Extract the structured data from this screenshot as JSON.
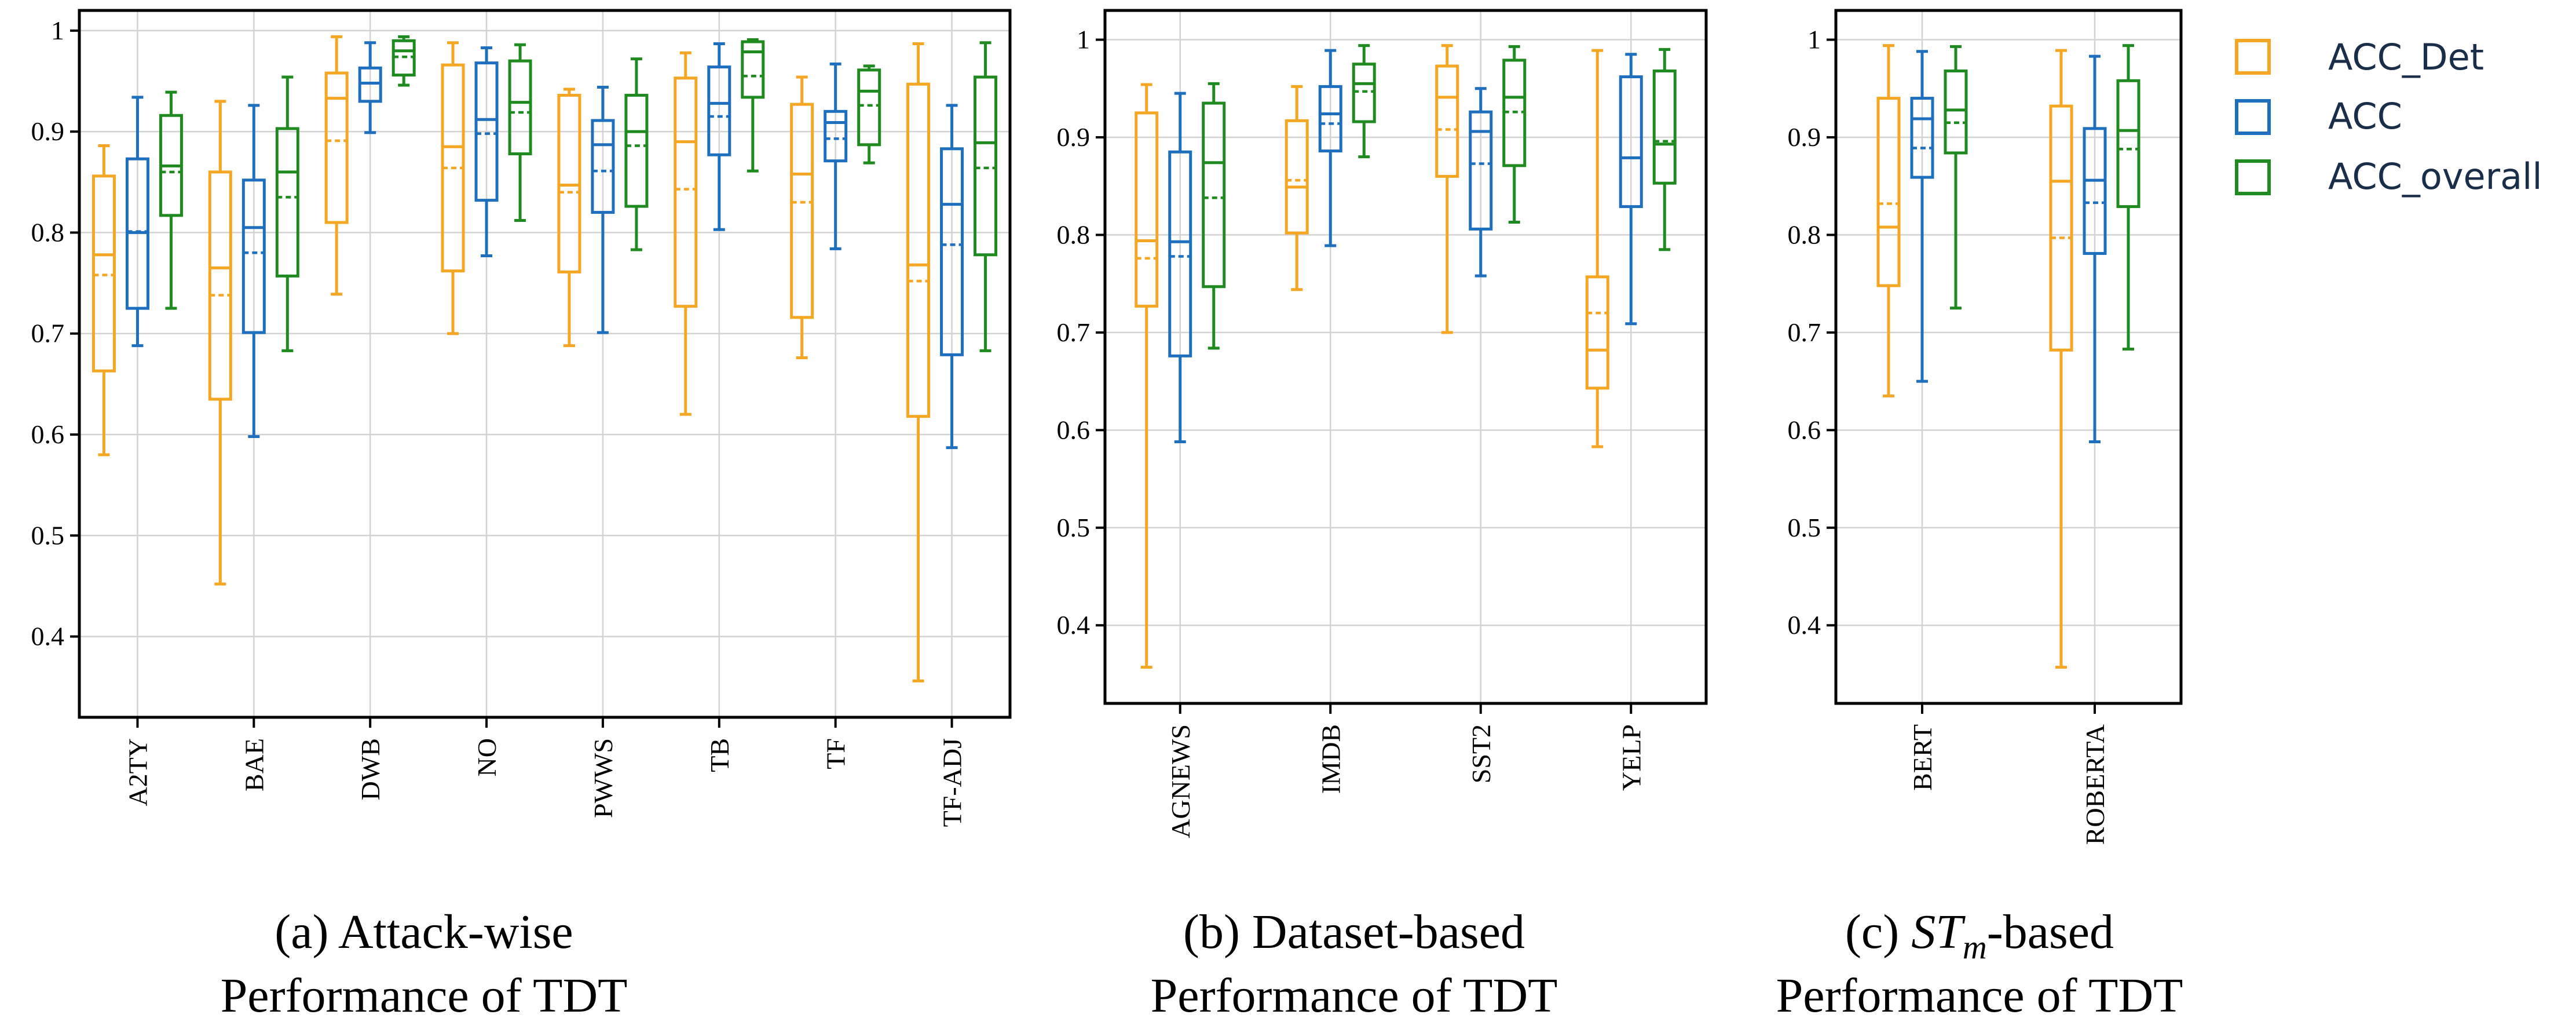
{
  "colors": {
    "ACC_Det": "#f5a623",
    "ACC": "#1f6fbf",
    "ACC_overall": "#1f8a1f",
    "grid": "#d3d3d3",
    "axis": "#000000"
  },
  "legend": {
    "items": [
      {
        "name": "ACC_Det",
        "label": "ACC_Det"
      },
      {
        "name": "ACC",
        "label": "ACC"
      },
      {
        "name": "ACC_overall",
        "label": "ACC_overall"
      }
    ]
  },
  "chart_data": [
    {
      "type": "box",
      "title": "Attack-wise Performance of TDT",
      "caption": {
        "line1": "(a) Attack-wise",
        "line2": "Performance of TDT"
      },
      "ylim": [
        0.32,
        1.02
      ],
      "yticks": [
        0.4,
        0.5,
        0.6,
        0.7,
        0.8,
        0.9,
        1
      ],
      "ytick_labels": [
        "0.4",
        "0.5",
        "0.6",
        "0.7",
        "0.8",
        "0.9",
        "1"
      ],
      "categories": [
        "A2TY",
        "BAE",
        "DWB",
        "NO",
        "PWWS",
        "TB",
        "TF",
        "TF-ADJ"
      ],
      "series": [
        {
          "name": "ACC_Det",
          "boxes": [
            {
              "whislo": 0.58,
              "q1": 0.663,
              "med": 0.778,
              "mean": 0.758,
              "q3": 0.856,
              "whishi": 0.886
            },
            {
              "whislo": 0.452,
              "q1": 0.635,
              "med": 0.765,
              "mean": 0.738,
              "q3": 0.86,
              "whishi": 0.93
            },
            {
              "whislo": 0.739,
              "q1": 0.81,
              "med": 0.933,
              "mean": 0.891,
              "q3": 0.958,
              "whishi": 0.994
            },
            {
              "whislo": 0.7,
              "q1": 0.762,
              "med": 0.885,
              "mean": 0.864,
              "q3": 0.966,
              "whishi": 0.988
            },
            {
              "whislo": 0.688,
              "q1": 0.761,
              "med": 0.847,
              "mean": 0.84,
              "q3": 0.936,
              "whishi": 0.942
            },
            {
              "whislo": 0.62,
              "q1": 0.727,
              "med": 0.89,
              "mean": 0.843,
              "q3": 0.953,
              "whishi": 0.978
            },
            {
              "whislo": 0.676,
              "q1": 0.716,
              "med": 0.858,
              "mean": 0.83,
              "q3": 0.927,
              "whishi": 0.954
            },
            {
              "whislo": 0.356,
              "q1": 0.618,
              "med": 0.768,
              "mean": 0.752,
              "q3": 0.947,
              "whishi": 0.987
            }
          ]
        },
        {
          "name": "ACC",
          "boxes": [
            {
              "whislo": 0.688,
              "q1": 0.725,
              "med": 0.8,
              "mean": 0.801,
              "q3": 0.873,
              "whishi": 0.934
            },
            {
              "whislo": 0.598,
              "q1": 0.701,
              "med": 0.805,
              "mean": 0.78,
              "q3": 0.852,
              "whishi": 0.926
            },
            {
              "whislo": 0.899,
              "q1": 0.93,
              "med": 0.948,
              "mean": 0.948,
              "q3": 0.963,
              "whishi": 0.988
            },
            {
              "whislo": 0.777,
              "q1": 0.832,
              "med": 0.912,
              "mean": 0.898,
              "q3": 0.968,
              "whishi": 0.983
            },
            {
              "whislo": 0.701,
              "q1": 0.82,
              "med": 0.887,
              "mean": 0.861,
              "q3": 0.911,
              "whishi": 0.944
            },
            {
              "whislo": 0.803,
              "q1": 0.877,
              "med": 0.928,
              "mean": 0.915,
              "q3": 0.964,
              "whishi": 0.987
            },
            {
              "whislo": 0.784,
              "q1": 0.871,
              "med": 0.909,
              "mean": 0.893,
              "q3": 0.92,
              "whishi": 0.967
            },
            {
              "whislo": 0.587,
              "q1": 0.679,
              "med": 0.828,
              "mean": 0.788,
              "q3": 0.883,
              "whishi": 0.926
            }
          ]
        },
        {
          "name": "ACC_overall",
          "boxes": [
            {
              "whislo": 0.725,
              "q1": 0.817,
              "med": 0.866,
              "mean": 0.86,
              "q3": 0.916,
              "whishi": 0.939
            },
            {
              "whislo": 0.683,
              "q1": 0.757,
              "med": 0.86,
              "mean": 0.835,
              "q3": 0.903,
              "whishi": 0.954
            },
            {
              "whislo": 0.946,
              "q1": 0.956,
              "med": 0.98,
              "mean": 0.974,
              "q3": 0.99,
              "whishi": 0.994
            },
            {
              "whislo": 0.812,
              "q1": 0.878,
              "med": 0.929,
              "mean": 0.919,
              "q3": 0.97,
              "whishi": 0.986
            },
            {
              "whislo": 0.783,
              "q1": 0.826,
              "med": 0.9,
              "mean": 0.886,
              "q3": 0.936,
              "whishi": 0.972
            },
            {
              "whislo": 0.861,
              "q1": 0.934,
              "med": 0.979,
              "mean": 0.955,
              "q3": 0.989,
              "whishi": 0.991
            },
            {
              "whislo": 0.869,
              "q1": 0.887,
              "med": 0.94,
              "mean": 0.926,
              "q3": 0.961,
              "whishi": 0.965
            },
            {
              "whislo": 0.683,
              "q1": 0.778,
              "med": 0.889,
              "mean": 0.864,
              "q3": 0.954,
              "whishi": 0.988
            }
          ]
        }
      ]
    },
    {
      "type": "box",
      "title": "Dataset-based Performance of TDT",
      "caption": {
        "line1": "(b) Dataset-based",
        "line2": "Performance of TDT"
      },
      "ylim": [
        0.32,
        1.03
      ],
      "yticks": [
        0.4,
        0.5,
        0.6,
        0.7,
        0.8,
        0.9,
        1
      ],
      "ytick_labels": [
        "0.4",
        "0.5",
        "0.6",
        "0.7",
        "0.8",
        "0.9",
        "1"
      ],
      "categories": [
        "AGNEWS",
        "IMDB",
        "SST2",
        "YELP"
      ],
      "series": [
        {
          "name": "ACC_Det",
          "boxes": [
            {
              "whislo": 0.357,
              "q1": 0.727,
              "med": 0.794,
              "mean": 0.776,
              "q3": 0.925,
              "whishi": 0.954
            },
            {
              "whislo": 0.744,
              "q1": 0.802,
              "med": 0.849,
              "mean": 0.856,
              "q3": 0.917,
              "whishi": 0.952
            },
            {
              "whislo": 0.7,
              "q1": 0.86,
              "med": 0.941,
              "mean": 0.908,
              "q3": 0.973,
              "whishi": 0.994
            },
            {
              "whislo": 0.583,
              "q1": 0.643,
              "med": 0.682,
              "mean": 0.72,
              "q3": 0.757,
              "whishi": 0.989
            }
          ]
        },
        {
          "name": "ACC",
          "boxes": [
            {
              "whislo": 0.588,
              "q1": 0.676,
              "med": 0.793,
              "mean": 0.778,
              "q3": 0.885,
              "whishi": 0.945
            },
            {
              "whislo": 0.789,
              "q1": 0.886,
              "med": 0.924,
              "mean": 0.914,
              "q3": 0.952,
              "whishi": 0.989
            },
            {
              "whislo": 0.758,
              "q1": 0.806,
              "med": 0.906,
              "mean": 0.873,
              "q3": 0.926,
              "whishi": 0.95
            },
            {
              "whislo": 0.709,
              "q1": 0.829,
              "med": 0.879,
              "mean": 0.879,
              "q3": 0.962,
              "whishi": 0.985
            }
          ]
        },
        {
          "name": "ACC_overall",
          "boxes": [
            {
              "whislo": 0.684,
              "q1": 0.747,
              "med": 0.874,
              "mean": 0.838,
              "q3": 0.935,
              "whishi": 0.955
            },
            {
              "whislo": 0.88,
              "q1": 0.916,
              "med": 0.955,
              "mean": 0.947,
              "q3": 0.975,
              "whishi": 0.994
            },
            {
              "whislo": 0.813,
              "q1": 0.871,
              "med": 0.941,
              "mean": 0.926,
              "q3": 0.979,
              "whishi": 0.993
            },
            {
              "whislo": 0.785,
              "q1": 0.853,
              "med": 0.893,
              "mean": 0.896,
              "q3": 0.968,
              "whishi": 0.99
            }
          ]
        }
      ]
    },
    {
      "type": "box",
      "title": "STm-based Performance of TDT",
      "caption": {
        "line1": "(c) ",
        "italic": "ST",
        "sub": "m",
        "line1_suffix": "-based",
        "line2": "Performance of TDT"
      },
      "ylim": [
        0.32,
        1.03
      ],
      "yticks": [
        0.4,
        0.5,
        0.6,
        0.7,
        0.8,
        0.9,
        1
      ],
      "ytick_labels": [
        "0.4",
        "0.5",
        "0.6",
        "0.7",
        "0.8",
        "0.9",
        "1"
      ],
      "categories": [
        "BERT",
        "ROBERTA"
      ],
      "series": [
        {
          "name": "ACC_Det",
          "boxes": [
            {
              "whislo": 0.635,
              "q1": 0.748,
              "med": 0.808,
              "mean": 0.832,
              "q3": 0.94,
              "whishi": 0.994
            },
            {
              "whislo": 0.357,
              "q1": 0.682,
              "med": 0.855,
              "mean": 0.797,
              "q3": 0.932,
              "whishi": 0.989
            }
          ]
        },
        {
          "name": "ACC",
          "boxes": [
            {
              "whislo": 0.65,
              "q1": 0.859,
              "med": 0.919,
              "mean": 0.889,
              "q3": 0.94,
              "whishi": 0.988
            },
            {
              "whislo": 0.588,
              "q1": 0.781,
              "med": 0.856,
              "mean": 0.833,
              "q3": 0.909,
              "whishi": 0.983
            }
          ]
        },
        {
          "name": "ACC_overall",
          "boxes": [
            {
              "whislo": 0.725,
              "q1": 0.884,
              "med": 0.928,
              "mean": 0.915,
              "q3": 0.968,
              "whishi": 0.993
            },
            {
              "whislo": 0.683,
              "q1": 0.829,
              "med": 0.907,
              "mean": 0.888,
              "q3": 0.958,
              "whishi": 0.994
            }
          ]
        }
      ]
    }
  ]
}
